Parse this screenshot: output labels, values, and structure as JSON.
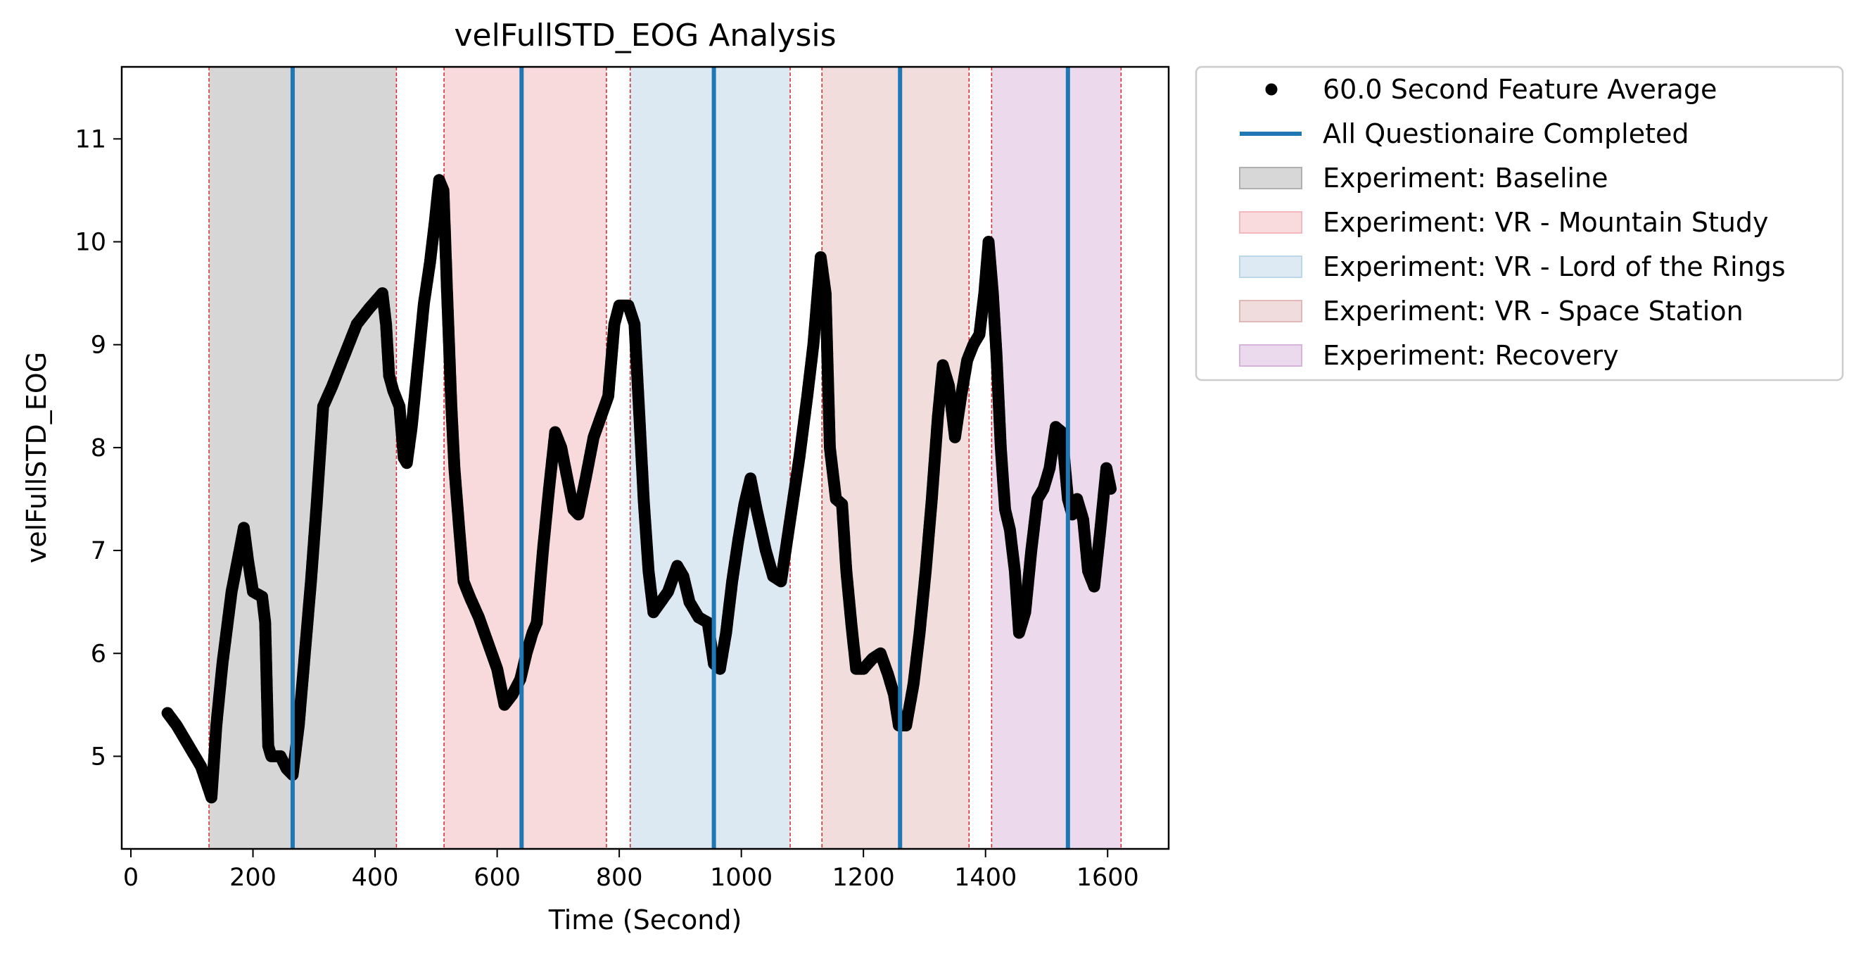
{
  "chart_data": {
    "type": "scatter",
    "title": "velFullSTD_EOG Analysis",
    "xlabel": "Time (Second)",
    "ylabel": "velFullSTD_EOG",
    "xlim": [
      -15,
      1700
    ],
    "ylim": [
      4.1,
      11.7
    ],
    "xticks": [
      0,
      200,
      400,
      600,
      800,
      1000,
      1200,
      1400,
      1600
    ],
    "yticks": [
      5,
      6,
      7,
      8,
      9,
      10,
      11
    ],
    "xtick_labels": [
      "0",
      "200",
      "400",
      "600",
      "800",
      "1000",
      "1200",
      "1400",
      "1600"
    ],
    "ytick_labels": [
      "5",
      "6",
      "7",
      "8",
      "9",
      "10",
      "11"
    ],
    "grid": false,
    "legend_position": "outside-right-top",
    "legend": [
      {
        "label": "60.0 Second Feature Average",
        "kind": "marker",
        "color": "#000000"
      },
      {
        "label": "All Questionaire Completed",
        "kind": "line",
        "color": "#1f77b4"
      },
      {
        "label": "Experiment: Baseline",
        "kind": "patch",
        "color": "#b0b0b0"
      },
      {
        "label": "Experiment: VR - Mountain Study",
        "kind": "patch",
        "color": "#f4b8be"
      },
      {
        "label": "Experiment: VR - Lord of the Rings",
        "kind": "patch",
        "color": "#bcd6ea"
      },
      {
        "label": "Experiment: VR - Space Station",
        "kind": "patch",
        "color": "#e1b9b9"
      },
      {
        "label": "Experiment: Recovery",
        "kind": "patch",
        "color": "#d8b4dc"
      }
    ],
    "experiments": [
      {
        "name": "Baseline",
        "start": 128,
        "end": 435,
        "color": "#d6d6d6"
      },
      {
        "name": "VR - Mountain Study",
        "start": 513,
        "end": 779,
        "color": "#f8d9dc"
      },
      {
        "name": "VR - Lord of the Rings",
        "start": 818,
        "end": 1080,
        "color": "#dce8f2"
      },
      {
        "name": "VR - Space Station",
        "start": 1132,
        "end": 1373,
        "color": "#f0dddc"
      },
      {
        "name": "Recovery",
        "start": 1410,
        "end": 1622,
        "color": "#ecd9ec"
      }
    ],
    "questionnaire_completed": [
      265,
      640,
      955,
      1260,
      1535
    ],
    "series": [
      {
        "name": "60.0 Second Feature Average",
        "points": [
          [
            60,
            5.42
          ],
          [
            75,
            5.3
          ],
          [
            95,
            5.1
          ],
          [
            115,
            4.9
          ],
          [
            132,
            4.6
          ],
          [
            140,
            5.3
          ],
          [
            150,
            5.9
          ],
          [
            165,
            6.6
          ],
          [
            178,
            7.0
          ],
          [
            185,
            7.22
          ],
          [
            192,
            6.9
          ],
          [
            200,
            6.6
          ],
          [
            215,
            6.55
          ],
          [
            220,
            6.3
          ],
          [
            225,
            5.1
          ],
          [
            230,
            5.0
          ],
          [
            245,
            5.0
          ],
          [
            255,
            4.88
          ],
          [
            265,
            4.82
          ],
          [
            275,
            5.3
          ],
          [
            285,
            6.0
          ],
          [
            295,
            6.7
          ],
          [
            305,
            7.5
          ],
          [
            315,
            8.4
          ],
          [
            330,
            8.6
          ],
          [
            350,
            8.9
          ],
          [
            370,
            9.2
          ],
          [
            390,
            9.35
          ],
          [
            412,
            9.5
          ],
          [
            418,
            9.2
          ],
          [
            423,
            8.7
          ],
          [
            430,
            8.55
          ],
          [
            440,
            8.4
          ],
          [
            447,
            7.9
          ],
          [
            452,
            7.85
          ],
          [
            460,
            8.2
          ],
          [
            470,
            8.8
          ],
          [
            480,
            9.4
          ],
          [
            490,
            9.8
          ],
          [
            498,
            10.2
          ],
          [
            505,
            10.6
          ],
          [
            512,
            10.5
          ],
          [
            518,
            9.5
          ],
          [
            525,
            8.4
          ],
          [
            530,
            7.8
          ],
          [
            538,
            7.2
          ],
          [
            545,
            6.7
          ],
          [
            555,
            6.55
          ],
          [
            570,
            6.35
          ],
          [
            585,
            6.1
          ],
          [
            600,
            5.85
          ],
          [
            612,
            5.5
          ],
          [
            625,
            5.6
          ],
          [
            638,
            5.75
          ],
          [
            648,
            6.0
          ],
          [
            658,
            6.2
          ],
          [
            665,
            6.3
          ],
          [
            675,
            7.0
          ],
          [
            685,
            7.6
          ],
          [
            695,
            8.15
          ],
          [
            705,
            8.0
          ],
          [
            715,
            7.7
          ],
          [
            725,
            7.4
          ],
          [
            733,
            7.35
          ],
          [
            745,
            7.7
          ],
          [
            758,
            8.1
          ],
          [
            770,
            8.3
          ],
          [
            782,
            8.5
          ],
          [
            792,
            9.2
          ],
          [
            800,
            9.38
          ],
          [
            815,
            9.38
          ],
          [
            825,
            9.2
          ],
          [
            833,
            8.3
          ],
          [
            840,
            7.5
          ],
          [
            848,
            6.8
          ],
          [
            856,
            6.4
          ],
          [
            868,
            6.5
          ],
          [
            880,
            6.6
          ],
          [
            895,
            6.85
          ],
          [
            905,
            6.75
          ],
          [
            915,
            6.5
          ],
          [
            930,
            6.35
          ],
          [
            945,
            6.3
          ],
          [
            955,
            5.9
          ],
          [
            965,
            5.85
          ],
          [
            975,
            6.2
          ],
          [
            985,
            6.7
          ],
          [
            995,
            7.1
          ],
          [
            1005,
            7.45
          ],
          [
            1015,
            7.7
          ],
          [
            1025,
            7.4
          ],
          [
            1040,
            7.0
          ],
          [
            1052,
            6.75
          ],
          [
            1065,
            6.7
          ],
          [
            1080,
            7.3
          ],
          [
            1095,
            7.9
          ],
          [
            1108,
            8.5
          ],
          [
            1118,
            9.0
          ],
          [
            1130,
            9.85
          ],
          [
            1138,
            9.5
          ],
          [
            1145,
            8.0
          ],
          [
            1155,
            7.5
          ],
          [
            1165,
            7.45
          ],
          [
            1172,
            6.8
          ],
          [
            1180,
            6.3
          ],
          [
            1188,
            5.85
          ],
          [
            1200,
            5.85
          ],
          [
            1215,
            5.95
          ],
          [
            1228,
            6.0
          ],
          [
            1240,
            5.8
          ],
          [
            1250,
            5.6
          ],
          [
            1258,
            5.3
          ],
          [
            1270,
            5.3
          ],
          [
            1282,
            5.7
          ],
          [
            1292,
            6.2
          ],
          [
            1302,
            6.8
          ],
          [
            1312,
            7.5
          ],
          [
            1322,
            8.3
          ],
          [
            1330,
            8.8
          ],
          [
            1340,
            8.6
          ],
          [
            1350,
            8.1
          ],
          [
            1360,
            8.5
          ],
          [
            1370,
            8.85
          ],
          [
            1380,
            9.0
          ],
          [
            1390,
            9.1
          ],
          [
            1398,
            9.5
          ],
          [
            1405,
            10.0
          ],
          [
            1412,
            9.5
          ],
          [
            1418,
            8.9
          ],
          [
            1425,
            8.0
          ],
          [
            1432,
            7.4
          ],
          [
            1440,
            7.2
          ],
          [
            1448,
            6.8
          ],
          [
            1455,
            6.2
          ],
          [
            1465,
            6.4
          ],
          [
            1475,
            7.0
          ],
          [
            1485,
            7.5
          ],
          [
            1495,
            7.6
          ],
          [
            1505,
            7.8
          ],
          [
            1515,
            8.2
          ],
          [
            1525,
            8.15
          ],
          [
            1535,
            7.5
          ],
          [
            1542,
            7.35
          ],
          [
            1550,
            7.5
          ],
          [
            1560,
            7.3
          ],
          [
            1568,
            6.8
          ],
          [
            1578,
            6.65
          ],
          [
            1588,
            7.2
          ],
          [
            1598,
            7.8
          ],
          [
            1605,
            7.6
          ]
        ]
      }
    ]
  }
}
